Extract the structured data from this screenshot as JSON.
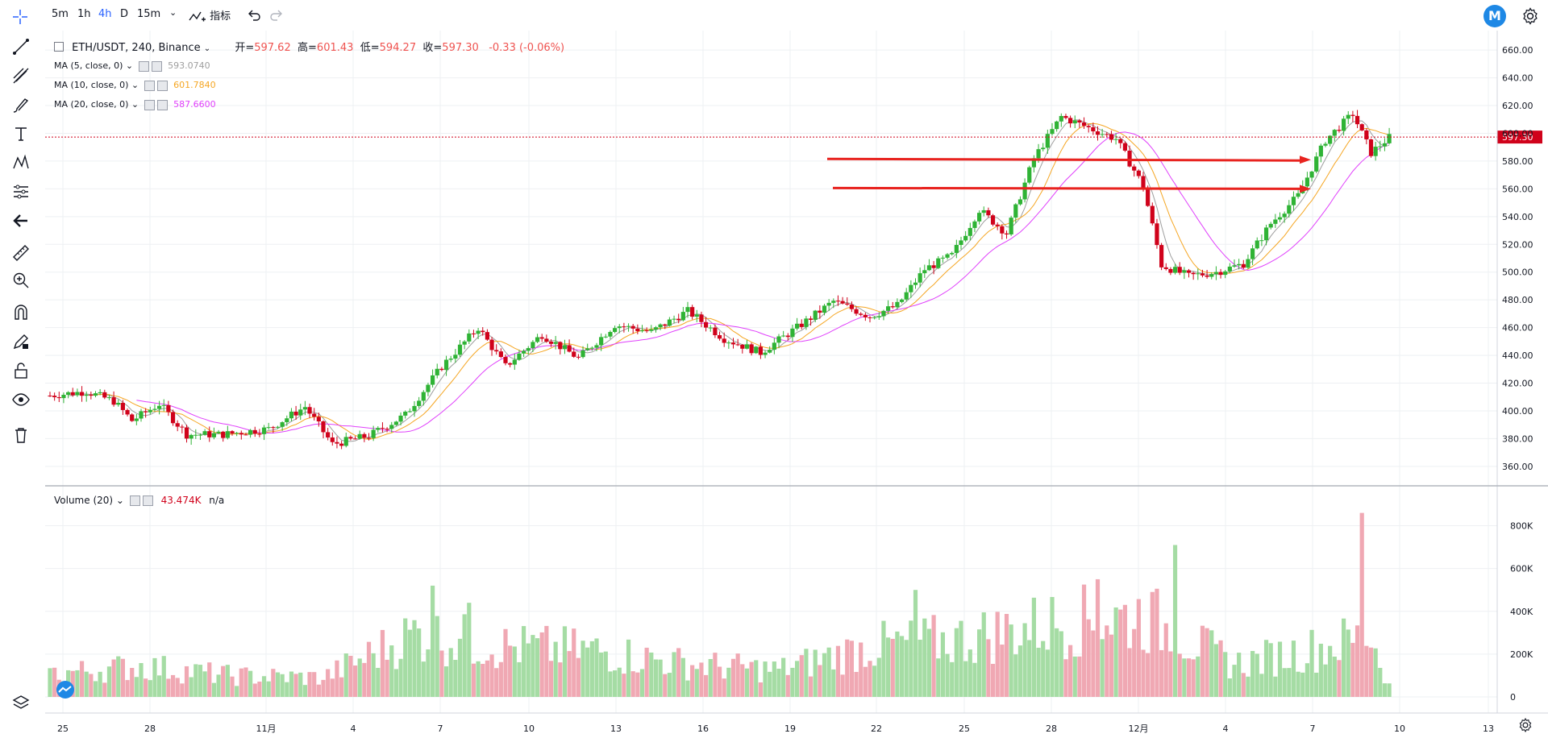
{
  "toolbar": {
    "timeframes": [
      "5m",
      "1h",
      "4h",
      "D",
      "15m"
    ],
    "active_timeframe": "4h",
    "indicators_label": "指标",
    "logo_letter": "M"
  },
  "legend": {
    "symbol": "ETH/USDT, 240, Binance",
    "open_label": "开",
    "open": "597.62",
    "high_label": "高",
    "high": "601.43",
    "low_label": "低",
    "low": "594.27",
    "close_label": "收",
    "close": "597.30",
    "change": "-0.33 (-0.06%)"
  },
  "ma": [
    {
      "label": "MA (5, close, 0)",
      "value": "593.0740",
      "color": "#9e9e9e"
    },
    {
      "label": "MA (10, close, 0)",
      "value": "601.7840",
      "color": "#f5a623"
    },
    {
      "label": "MA (20, close, 0)",
      "value": "587.6600",
      "color": "#e040fb"
    }
  ],
  "volume_legend": {
    "label": "Volume (20)",
    "value": "43.474K",
    "extra": "n/a"
  },
  "colors": {
    "up": "#26a69a",
    "up_fill": "#2fb335",
    "down": "#d0021b",
    "grid": "#eef0f3",
    "arrow": "#e8231f"
  },
  "chart_data": {
    "type": "candlestick",
    "title": "ETH/USDT, 240, Binance",
    "price_ticks": [
      "660.00",
      "640.00",
      "620.00",
      "600.00",
      "580.00",
      "560.00",
      "540.00",
      "520.00",
      "500.00",
      "480.00",
      "460.00",
      "440.00",
      "420.00",
      "400.00",
      "380.00",
      "360.00"
    ],
    "price_range": [
      346,
      674
    ],
    "last_price": "597.30",
    "volume_ticks": [
      "800K",
      "600K",
      "400K",
      "200K",
      "0"
    ],
    "volume_range": [
      0,
      900000
    ],
    "date_ticks": [
      "25",
      "28",
      "11月",
      "4",
      "7",
      "10",
      "13",
      "16",
      "19",
      "22",
      "25",
      "28",
      "12月",
      "4",
      "7",
      "10",
      "13"
    ],
    "price_path": [
      {
        "i": 0,
        "p": 411
      },
      {
        "i": 8,
        "p": 414
      },
      {
        "i": 14,
        "p": 407
      },
      {
        "i": 18,
        "p": 393
      },
      {
        "i": 24,
        "p": 405
      },
      {
        "i": 30,
        "p": 383
      },
      {
        "i": 38,
        "p": 383
      },
      {
        "i": 48,
        "p": 387
      },
      {
        "i": 56,
        "p": 403
      },
      {
        "i": 62,
        "p": 376
      },
      {
        "i": 70,
        "p": 382
      },
      {
        "i": 78,
        "p": 397
      },
      {
        "i": 86,
        "p": 432
      },
      {
        "i": 94,
        "p": 460
      },
      {
        "i": 100,
        "p": 432
      },
      {
        "i": 108,
        "p": 455
      },
      {
        "i": 116,
        "p": 438
      },
      {
        "i": 124,
        "p": 462
      },
      {
        "i": 132,
        "p": 457
      },
      {
        "i": 140,
        "p": 472
      },
      {
        "i": 148,
        "p": 452
      },
      {
        "i": 156,
        "p": 442
      },
      {
        "i": 164,
        "p": 460
      },
      {
        "i": 172,
        "p": 479
      },
      {
        "i": 180,
        "p": 468
      },
      {
        "i": 186,
        "p": 476
      },
      {
        "i": 192,
        "p": 502
      },
      {
        "i": 198,
        "p": 512
      },
      {
        "i": 204,
        "p": 545
      },
      {
        "i": 210,
        "p": 528
      },
      {
        "i": 216,
        "p": 582
      },
      {
        "i": 222,
        "p": 612
      },
      {
        "i": 228,
        "p": 604
      },
      {
        "i": 234,
        "p": 596
      },
      {
        "i": 240,
        "p": 562
      },
      {
        "i": 244,
        "p": 505
      },
      {
        "i": 250,
        "p": 497
      },
      {
        "i": 256,
        "p": 500
      },
      {
        "i": 262,
        "p": 506
      },
      {
        "i": 268,
        "p": 535
      },
      {
        "i": 274,
        "p": 555
      },
      {
        "i": 280,
        "p": 595
      },
      {
        "i": 286,
        "p": 614
      },
      {
        "i": 290,
        "p": 586
      },
      {
        "i": 294,
        "p": 597
      }
    ],
    "volume_path": [
      {
        "i": 0,
        "v": 120000
      },
      {
        "i": 20,
        "v": 160000
      },
      {
        "i": 40,
        "v": 110000
      },
      {
        "i": 60,
        "v": 100000
      },
      {
        "i": 80,
        "v": 330000
      },
      {
        "i": 100,
        "v": 260000
      },
      {
        "i": 120,
        "v": 240000
      },
      {
        "i": 140,
        "v": 170000
      },
      {
        "i": 160,
        "v": 140000
      },
      {
        "i": 180,
        "v": 260000
      },
      {
        "i": 200,
        "v": 300000
      },
      {
        "i": 220,
        "v": 380000
      },
      {
        "i": 240,
        "v": 420000
      },
      {
        "i": 260,
        "v": 170000
      },
      {
        "i": 280,
        "v": 260000
      },
      {
        "i": 290,
        "v": 320000
      },
      {
        "i": 294,
        "v": 60000
      }
    ],
    "volume_spikes": [
      {
        "i": 84,
        "v": 520000
      },
      {
        "i": 92,
        "v": 440000
      },
      {
        "i": 190,
        "v": 500000
      },
      {
        "i": 230,
        "v": 550000
      },
      {
        "i": 247,
        "v": 710000
      },
      {
        "i": 288,
        "v": 860000
      }
    ],
    "resistance_lines": [
      {
        "price": 581,
        "label": ""
      },
      {
        "price": 560,
        "label": ""
      }
    ]
  }
}
